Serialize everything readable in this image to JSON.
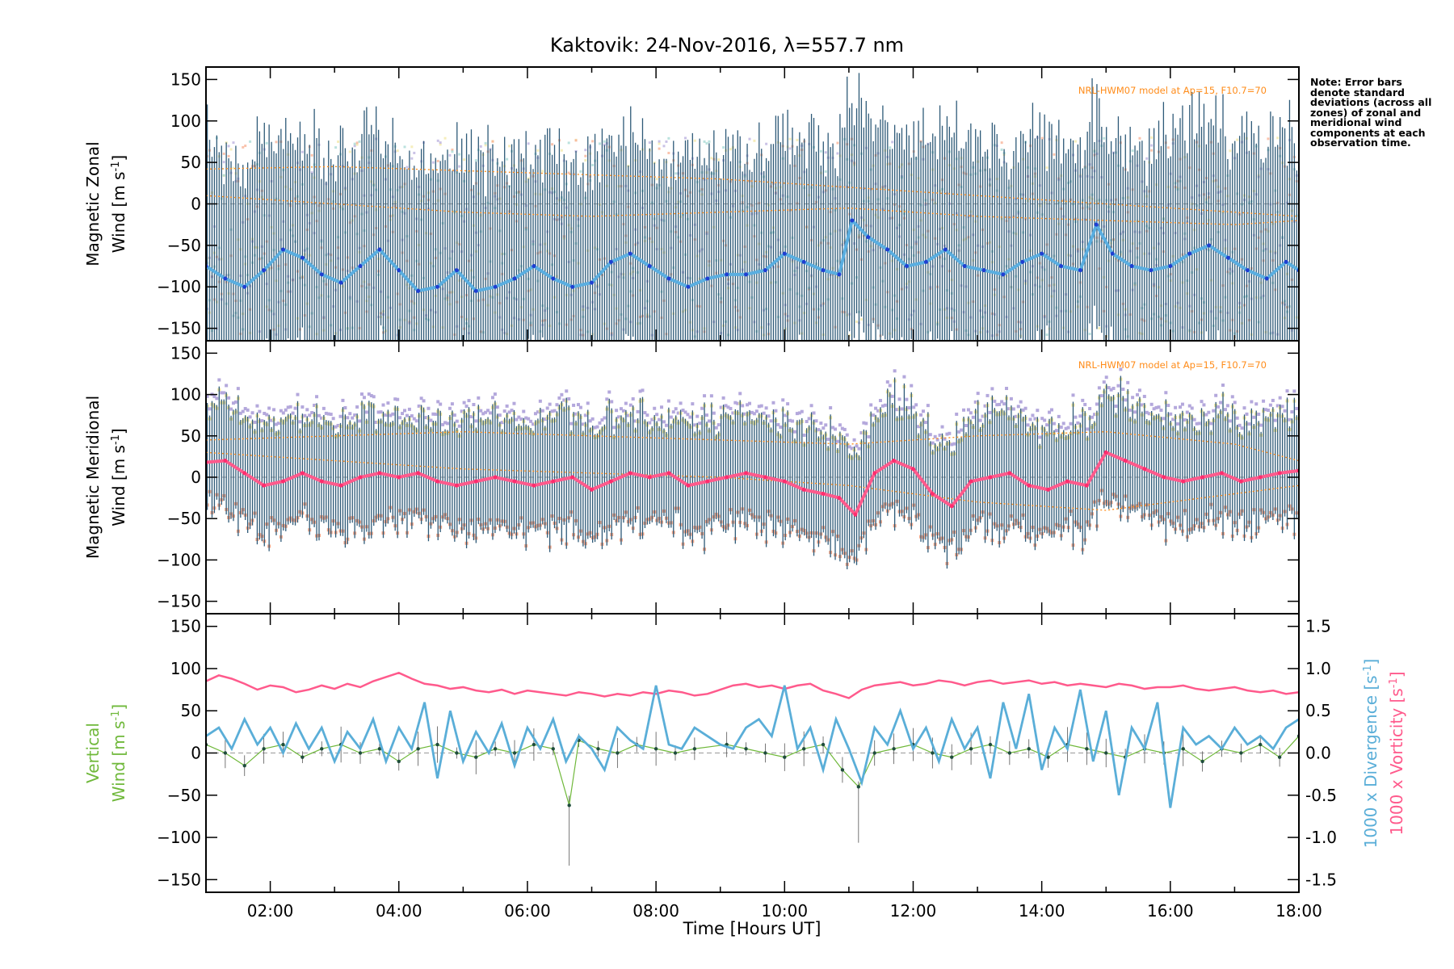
{
  "title": "Kaktovik: 24-Nov-2016, λ=557.7 nm",
  "note": "Note: Error bars denote standard deviations (across all zones) of zonal and meridional wind components at each observation time.",
  "model_label": "NRL-HWM07 model at Ap=15, F10.7=70",
  "colors": {
    "zonal": "#5aaee0",
    "zonal_dark": "#1f3fd1",
    "meridional": "#ff5a8c",
    "errbar": "#2e5a78",
    "vertical": "#6fb83a",
    "vertical_pts": "#1f4d3c",
    "divergence": "#5aaed8",
    "vorticity": "#ff5a8c",
    "model": "#ff8c1a",
    "scatter_purple": "#b4a8dc",
    "scatter_yellow": "#f2e7a0",
    "scatter_salmon": "#f7a98a"
  },
  "chart_data": [
    {
      "type": "line",
      "panel": "zonal",
      "ylabel_line1": "Magnetic Zonal",
      "ylabel_line2": "Wind [m s",
      "ylabel_sup": "-1",
      "ylabel_close": "]",
      "xlim": [
        1.0,
        18.0
      ],
      "ylim": [
        -165,
        165
      ],
      "yticks": [
        -150,
        -100,
        -50,
        0,
        50,
        100,
        150
      ],
      "series": [
        {
          "role": "wind",
          "x": [
            1.0,
            1.3,
            1.6,
            1.9,
            2.2,
            2.5,
            2.8,
            3.1,
            3.4,
            3.7,
            4.0,
            4.3,
            4.6,
            4.9,
            5.2,
            5.5,
            5.8,
            6.1,
            6.4,
            6.7,
            7.0,
            7.3,
            7.6,
            7.9,
            8.2,
            8.5,
            8.8,
            9.1,
            9.4,
            9.7,
            10.0,
            10.3,
            10.6,
            10.85,
            11.05,
            11.3,
            11.6,
            11.9,
            12.2,
            12.5,
            12.8,
            13.1,
            13.4,
            13.7,
            14.0,
            14.3,
            14.6,
            14.85,
            15.1,
            15.4,
            15.7,
            16.0,
            16.3,
            16.6,
            16.9,
            17.2,
            17.5,
            17.8,
            18.0
          ],
          "y": [
            -75,
            -90,
            -100,
            -80,
            -55,
            -65,
            -85,
            -95,
            -75,
            -55,
            -80,
            -105,
            -100,
            -80,
            -105,
            -100,
            -90,
            -75,
            -90,
            -100,
            -95,
            -70,
            -60,
            -75,
            -90,
            -100,
            -90,
            -85,
            -85,
            -80,
            -60,
            -70,
            -80,
            -85,
            -20,
            -40,
            -55,
            -75,
            -70,
            -55,
            -75,
            -80,
            -85,
            -70,
            -60,
            -75,
            -80,
            -25,
            -60,
            -75,
            -80,
            -75,
            -60,
            -50,
            -65,
            -80,
            -90,
            -70,
            -80
          ]
        },
        {
          "role": "model",
          "x": [
            1,
            3,
            5,
            7,
            9,
            11,
            13,
            15,
            17,
            18
          ],
          "y": [
            42,
            45,
            40,
            35,
            30,
            20,
            10,
            0,
            -10,
            -15
          ]
        },
        {
          "role": "model",
          "x": [
            1,
            3,
            5,
            7,
            9,
            11,
            13,
            15,
            17,
            18
          ],
          "y": [
            10,
            0,
            -10,
            -15,
            -10,
            -5,
            -15,
            -20,
            -25,
            -20
          ]
        }
      ]
    },
    {
      "type": "line",
      "panel": "meridional",
      "ylabel_line1": "Magnetic Meridional",
      "ylabel_line2": "Wind [m s",
      "ylabel_sup": "-1",
      "ylabel_close": "]",
      "xlim": [
        1.0,
        18.0
      ],
      "ylim": [
        -165,
        165
      ],
      "yticks": [
        -150,
        -100,
        -50,
        0,
        50,
        100,
        150
      ],
      "series": [
        {
          "role": "wind",
          "x": [
            1.0,
            1.3,
            1.6,
            1.9,
            2.2,
            2.5,
            2.8,
            3.1,
            3.4,
            3.7,
            4.0,
            4.3,
            4.6,
            4.9,
            5.2,
            5.5,
            5.8,
            6.1,
            6.4,
            6.7,
            7.0,
            7.3,
            7.6,
            7.9,
            8.2,
            8.5,
            8.8,
            9.1,
            9.4,
            9.7,
            10.0,
            10.3,
            10.6,
            10.85,
            11.1,
            11.4,
            11.7,
            12.0,
            12.3,
            12.6,
            12.9,
            13.2,
            13.5,
            13.8,
            14.1,
            14.4,
            14.7,
            15.0,
            15.3,
            15.6,
            15.9,
            16.2,
            16.5,
            16.8,
            17.1,
            17.4,
            17.7,
            18.0
          ],
          "y": [
            18,
            20,
            5,
            -10,
            -5,
            5,
            -5,
            -10,
            0,
            5,
            0,
            5,
            -5,
            -10,
            -5,
            0,
            -5,
            -10,
            -5,
            0,
            -15,
            -5,
            5,
            0,
            5,
            -10,
            -5,
            0,
            5,
            0,
            -5,
            -15,
            -20,
            -25,
            -45,
            5,
            20,
            10,
            -20,
            -35,
            -5,
            0,
            5,
            -10,
            -15,
            -5,
            -10,
            30,
            20,
            10,
            0,
            -5,
            0,
            5,
            -5,
            0,
            5,
            8
          ]
        },
        {
          "role": "model",
          "x": [
            1,
            3,
            5,
            7,
            9,
            11,
            13,
            15,
            17,
            18
          ],
          "y": [
            30,
            20,
            10,
            5,
            0,
            -10,
            -30,
            -40,
            -20,
            -10
          ]
        },
        {
          "role": "model",
          "x": [
            1,
            3,
            5,
            7,
            9,
            11,
            13,
            15,
            17,
            18
          ],
          "y": [
            45,
            50,
            55,
            50,
            45,
            40,
            50,
            55,
            40,
            20
          ]
        }
      ]
    },
    {
      "type": "line",
      "panel": "vertical",
      "ylabel_line1": "Vertical",
      "ylabel_line2": "Wind [m s",
      "ylabel_sup": "-1",
      "ylabel_close": "]",
      "ylabel2": "1000 x Divergence [s",
      "ylabel3": "1000 x Vorticity [s",
      "xlabel": "Time [Hours UT]",
      "xlim": [
        1.0,
        18.0
      ],
      "ylim": [
        -165,
        165
      ],
      "yticks": [
        -150,
        -100,
        -50,
        0,
        50,
        100,
        150
      ],
      "y2lim": [
        -1.65,
        1.65
      ],
      "y2ticks": [
        "-1.5",
        "-1.0",
        "-0.5",
        "0.0",
        "0.5",
        "1.0",
        "1.5"
      ],
      "xticks": [
        "02:00",
        "04:00",
        "06:00",
        "08:00",
        "10:00",
        "12:00",
        "14:00",
        "16:00",
        "18:00"
      ],
      "xtick_values": [
        2,
        4,
        6,
        8,
        10,
        12,
        14,
        16,
        18
      ],
      "series": [
        {
          "role": "vertical",
          "x": [
            1.0,
            1.3,
            1.6,
            1.9,
            2.2,
            2.5,
            2.8,
            3.1,
            3.4,
            3.7,
            4.0,
            4.3,
            4.6,
            4.9,
            5.2,
            5.5,
            5.8,
            6.1,
            6.4,
            6.65,
            6.8,
            7.1,
            7.4,
            7.7,
            8.0,
            8.3,
            8.6,
            9.1,
            9.4,
            9.7,
            10.0,
            10.3,
            10.6,
            10.9,
            11.15,
            11.4,
            11.7,
            12.0,
            12.3,
            12.6,
            12.9,
            13.2,
            13.5,
            13.8,
            14.1,
            14.4,
            14.7,
            15.0,
            15.3,
            15.6,
            15.9,
            16.2,
            16.5,
            16.8,
            17.1,
            17.4,
            17.7,
            18.0
          ],
          "y": [
            10,
            0,
            -15,
            5,
            10,
            -5,
            5,
            10,
            0,
            5,
            -10,
            5,
            10,
            0,
            -5,
            5,
            0,
            10,
            5,
            -62,
            15,
            5,
            0,
            10,
            5,
            0,
            5,
            10,
            5,
            0,
            -5,
            5,
            10,
            -20,
            -40,
            0,
            5,
            10,
            0,
            -5,
            5,
            10,
            0,
            5,
            -5,
            10,
            5,
            0,
            -5,
            5,
            0,
            5,
            -10,
            5,
            0,
            10,
            -5,
            20
          ]
        },
        {
          "role": "divergence",
          "x": [
            1.0,
            1.2,
            1.4,
            1.6,
            1.8,
            2.0,
            2.2,
            2.4,
            2.6,
            2.8,
            3.0,
            3.2,
            3.4,
            3.6,
            3.8,
            4.0,
            4.2,
            4.4,
            4.6,
            4.8,
            5.0,
            5.2,
            5.4,
            5.6,
            5.8,
            6.0,
            6.2,
            6.4,
            6.6,
            6.8,
            7.0,
            7.2,
            7.4,
            7.6,
            7.8,
            8.0,
            8.2,
            8.4,
            8.6,
            8.8,
            9.0,
            9.2,
            9.4,
            9.6,
            9.8,
            10.0,
            10.2,
            10.4,
            10.6,
            10.8,
            11.0,
            11.2,
            11.4,
            11.6,
            11.8,
            12.0,
            12.2,
            12.4,
            12.6,
            12.8,
            13.0,
            13.2,
            13.4,
            13.6,
            13.8,
            14.0,
            14.2,
            14.4,
            14.6,
            14.8,
            15.0,
            15.2,
            15.4,
            15.6,
            15.8,
            16.0,
            16.2,
            16.4,
            16.6,
            16.8,
            17.0,
            17.2,
            17.4,
            17.6,
            17.8,
            18.0
          ],
          "y": [
            0.2,
            0.3,
            0.05,
            0.4,
            0.1,
            0.3,
            0.0,
            0.35,
            0.05,
            0.3,
            -0.1,
            0.25,
            0.05,
            0.4,
            -0.1,
            0.3,
            0.05,
            0.6,
            -0.3,
            0.5,
            -0.1,
            0.25,
            0.0,
            0.35,
            -0.15,
            0.3,
            0.05,
            0.4,
            -0.1,
            0.2,
            0.05,
            -0.2,
            0.3,
            0.15,
            0.05,
            0.8,
            0.1,
            0.05,
            0.3,
            0.2,
            0.1,
            0.05,
            0.3,
            0.4,
            0.2,
            0.8,
            0.05,
            0.3,
            -0.2,
            0.4,
            0.05,
            -0.35,
            0.3,
            0.1,
            0.5,
            0.05,
            0.3,
            -0.1,
            0.4,
            0.05,
            0.3,
            -0.3,
            0.6,
            0.05,
            0.7,
            -0.2,
            0.3,
            0.05,
            0.75,
            -0.1,
            0.5,
            -0.5,
            0.3,
            0.05,
            0.6,
            -0.65,
            0.3,
            0.1,
            0.2,
            0.05,
            0.3,
            0.1,
            0.2,
            0.05,
            0.3,
            0.4
          ]
        },
        {
          "role": "vorticity",
          "x": [
            1.0,
            1.2,
            1.4,
            1.6,
            1.8,
            2.0,
            2.2,
            2.4,
            2.6,
            2.8,
            3.0,
            3.2,
            3.4,
            3.6,
            3.8,
            4.0,
            4.2,
            4.4,
            4.6,
            4.8,
            5.0,
            5.2,
            5.4,
            5.6,
            5.8,
            6.0,
            6.2,
            6.4,
            6.6,
            6.8,
            7.0,
            7.2,
            7.4,
            7.6,
            7.8,
            8.0,
            8.2,
            8.4,
            8.6,
            8.8,
            9.0,
            9.2,
            9.4,
            9.6,
            9.8,
            10.0,
            10.2,
            10.4,
            10.6,
            10.8,
            11.0,
            11.2,
            11.4,
            11.6,
            11.8,
            12.0,
            12.2,
            12.4,
            12.6,
            12.8,
            13.0,
            13.2,
            13.4,
            13.6,
            13.8,
            14.0,
            14.2,
            14.4,
            14.6,
            14.8,
            15.0,
            15.2,
            15.4,
            15.6,
            15.8,
            16.0,
            16.2,
            16.4,
            16.6,
            16.8,
            17.0,
            17.2,
            17.4,
            17.6,
            17.8,
            18.0
          ],
          "y": [
            0.85,
            0.92,
            0.88,
            0.82,
            0.75,
            0.8,
            0.78,
            0.72,
            0.75,
            0.8,
            0.76,
            0.82,
            0.78,
            0.85,
            0.9,
            0.95,
            0.88,
            0.82,
            0.8,
            0.76,
            0.78,
            0.74,
            0.72,
            0.75,
            0.7,
            0.74,
            0.72,
            0.7,
            0.68,
            0.72,
            0.7,
            0.67,
            0.7,
            0.68,
            0.72,
            0.7,
            0.74,
            0.72,
            0.68,
            0.7,
            0.75,
            0.8,
            0.82,
            0.78,
            0.8,
            0.76,
            0.8,
            0.82,
            0.74,
            0.7,
            0.65,
            0.75,
            0.8,
            0.82,
            0.84,
            0.8,
            0.82,
            0.86,
            0.84,
            0.8,
            0.84,
            0.86,
            0.82,
            0.84,
            0.86,
            0.82,
            0.84,
            0.8,
            0.82,
            0.8,
            0.78,
            0.82,
            0.8,
            0.76,
            0.78,
            0.78,
            0.8,
            0.76,
            0.74,
            0.76,
            0.78,
            0.74,
            0.72,
            0.74,
            0.7,
            0.72
          ]
        }
      ]
    }
  ]
}
